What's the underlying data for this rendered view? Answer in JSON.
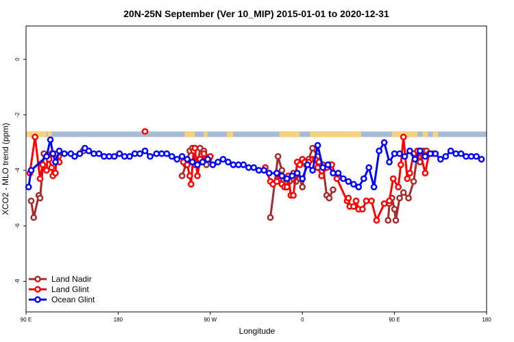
{
  "chart_data": {
    "type": "line",
    "title": "20N-25N September (Ver 10_MIP)   2015-01-01 to 2020-12-31",
    "xlabel": "Longitude",
    "ylabel": "XCO2 - MLO trend (ppm)",
    "xlim": [
      90,
      450
    ],
    "ylim": [
      -9.1,
      1.2
    ],
    "x_ticks": [
      {
        "value": 90,
        "label": "90 E"
      },
      {
        "value": 162,
        "label": "180"
      },
      {
        "value": 234,
        "label": "90 W"
      },
      {
        "value": 306,
        "label": "0"
      },
      {
        "value": 378,
        "label": "90 E"
      },
      {
        "value": 450,
        "label": "180"
      }
    ],
    "y_ticks": [
      {
        "value": 0,
        "label": "0"
      },
      {
        "value": -2,
        "label": "-2"
      },
      {
        "value": -4,
        "label": "-4"
      },
      {
        "value": -6,
        "label": "-6"
      },
      {
        "value": -8,
        "label": "-8"
      }
    ],
    "grid": false,
    "legend_position": "bottom-left",
    "map_strip": {
      "y_top": -2.6,
      "y_bottom": -2.8,
      "ocean_color": "#a9bcd6",
      "land_color": "#f6d27a"
    },
    "series": [
      {
        "name": "Land Nadir",
        "color": "#a52a2a",
        "x": [
          94,
          96,
          100,
          101,
          104,
          108,
          110,
          112,
          115,
          115.5,
          134.5,
          135,
          212,
          215,
          218,
          220,
          222,
          225,
          226,
          229,
          230,
          231,
          233,
          281,
          287,
          290,
          293,
          296,
          299,
          301,
          302,
          304,
          306,
          309,
          311,
          314,
          318,
          319,
          322,
          325,
          327,
          330,
          373,
          374,
          376,
          378,
          379,
          382,
          385,
          389,
          393,
          396,
          398,
          401,
          403
        ],
        "y": [
          -5.1,
          -5.7,
          -4.9,
          -5.0,
          -3.4,
          -3.5,
          -3.4,
          -3.4,
          -3.4,
          -3.5,
          -3.3,
          -3.3,
          -4.2,
          -3.8,
          -3.3,
          -3.2,
          -3.8,
          -3.6,
          -3.2,
          -3.3,
          -3.5,
          -3.8,
          -3.6,
          -5.7,
          -3.5,
          -4.0,
          -4.6,
          -4.4,
          -4.1,
          -4.4,
          -4.1,
          -4.3,
          -4.6,
          -3.8,
          -3.6,
          -3.2,
          -3.5,
          -3.7,
          -3.8,
          -4.9,
          -5.0,
          -4.7,
          -5.8,
          -5.2,
          -5.0,
          -5.4,
          -5.8,
          -5.0,
          -4.8,
          -5.0,
          -4.4,
          -3.4,
          -3.7,
          -3.3,
          -3.3
        ]
      },
      {
        "name": "Land Glint",
        "color": "#ff0000",
        "x": [
          93,
          97,
          101,
          103,
          106,
          107,
          108,
          110,
          111,
          113,
          114,
          116,
          183,
          213,
          216,
          218,
          219,
          221,
          222,
          224,
          226,
          229,
          231,
          234,
          277,
          281,
          283,
          286,
          288,
          289,
          290,
          292,
          294,
          295,
          297,
          299,
          302,
          304,
          306,
          308,
          311,
          314,
          316,
          318,
          321,
          325,
          327,
          329,
          333,
          341,
          342,
          343,
          346,
          348,
          350,
          353,
          356,
          360,
          364,
          370,
          374,
          377,
          381,
          383,
          385,
          388,
          390,
          393,
          396,
          398,
          402,
          405,
          408
        ],
        "y": [
          -4.1,
          -2.8,
          -4.3,
          -3.8,
          -4.0,
          -3.5,
          -3.6,
          -3.9,
          -4.2,
          -4.1,
          -3.4,
          -3.7,
          -2.6,
          -3.7,
          -3.8,
          -4.2,
          -4.5,
          -3.3,
          -3.2,
          -4.2,
          -3.6,
          -3.4,
          -3.6,
          -3.5,
          -3.9,
          -4.4,
          -4.5,
          -4.4,
          -4.2,
          -4.2,
          -4.5,
          -4.6,
          -4.6,
          -4.2,
          -4.9,
          -4.9,
          -3.7,
          -3.8,
          -3.6,
          -3.7,
          -3.7,
          -3.6,
          -3.6,
          -3.9,
          -4.2,
          -3.9,
          -3.8,
          -3.8,
          -4.3,
          -5.1,
          -5.0,
          -5.3,
          -5.3,
          -5.1,
          -5.4,
          -5.4,
          -5.1,
          -5.1,
          -5.8,
          -5.2,
          -5.1,
          -4.3,
          -4.6,
          -3.8,
          -2.8,
          -4.3,
          -4.1,
          -3.4,
          -3.3,
          -3.3,
          -4.1,
          -3.4,
          -3.4
        ]
      },
      {
        "name": "Ocean Glint",
        "color": "#0000ff",
        "x": [
          92,
          94,
          106,
          109,
          111,
          113,
          116,
          120,
          125,
          128,
          132,
          136,
          139,
          143,
          147,
          151,
          155,
          159,
          163,
          167,
          171,
          175,
          179,
          183,
          187,
          192,
          196,
          200,
          204,
          208,
          212,
          216,
          220,
          224,
          228,
          232,
          236,
          240,
          244,
          248,
          252,
          256,
          260,
          264,
          268,
          272,
          276,
          280,
          286,
          290,
          294,
          298,
          302,
          306,
          310,
          314,
          318,
          322,
          326,
          330,
          334,
          338,
          342,
          346,
          350,
          354,
          358,
          362,
          366,
          370,
          374,
          378,
          382,
          386,
          390,
          394,
          398,
          402,
          406,
          410,
          414,
          418,
          422,
          426,
          430,
          434,
          438,
          442,
          446
        ],
        "y": [
          -4.6,
          -4.0,
          -3.5,
          -2.9,
          -3.4,
          -3.7,
          -3.3,
          -3.4,
          -3.4,
          -3.5,
          -3.4,
          -3.2,
          -3.3,
          -3.4,
          -3.4,
          -3.5,
          -3.5,
          -3.5,
          -3.4,
          -3.5,
          -3.5,
          -3.4,
          -3.4,
          -3.3,
          -3.5,
          -3.4,
          -3.4,
          -3.4,
          -3.5,
          -3.6,
          -3.5,
          -3.6,
          -3.7,
          -3.8,
          -3.7,
          -3.6,
          -3.8,
          -3.7,
          -3.6,
          -3.7,
          -3.8,
          -3.8,
          -3.8,
          -3.9,
          -3.9,
          -4.0,
          -4.0,
          -4.1,
          -4.1,
          -4.2,
          -4.3,
          -4.2,
          -4.1,
          -4.3,
          -3.8,
          -4.0,
          -3.1,
          -3.9,
          -3.8,
          -4.1,
          -4.1,
          -4.3,
          -4.4,
          -4.5,
          -4.6,
          -4.3,
          -3.9,
          -4.6,
          -3.3,
          -3.0,
          -3.7,
          -3.4,
          -3.4,
          -3.5,
          -3.3,
          -3.6,
          -3.3,
          -3.5,
          -3.4,
          -3.4,
          -3.6,
          -3.5,
          -3.3,
          -3.4,
          -3.4,
          -3.5,
          -3.5,
          -3.5,
          -3.6
        ]
      }
    ]
  }
}
